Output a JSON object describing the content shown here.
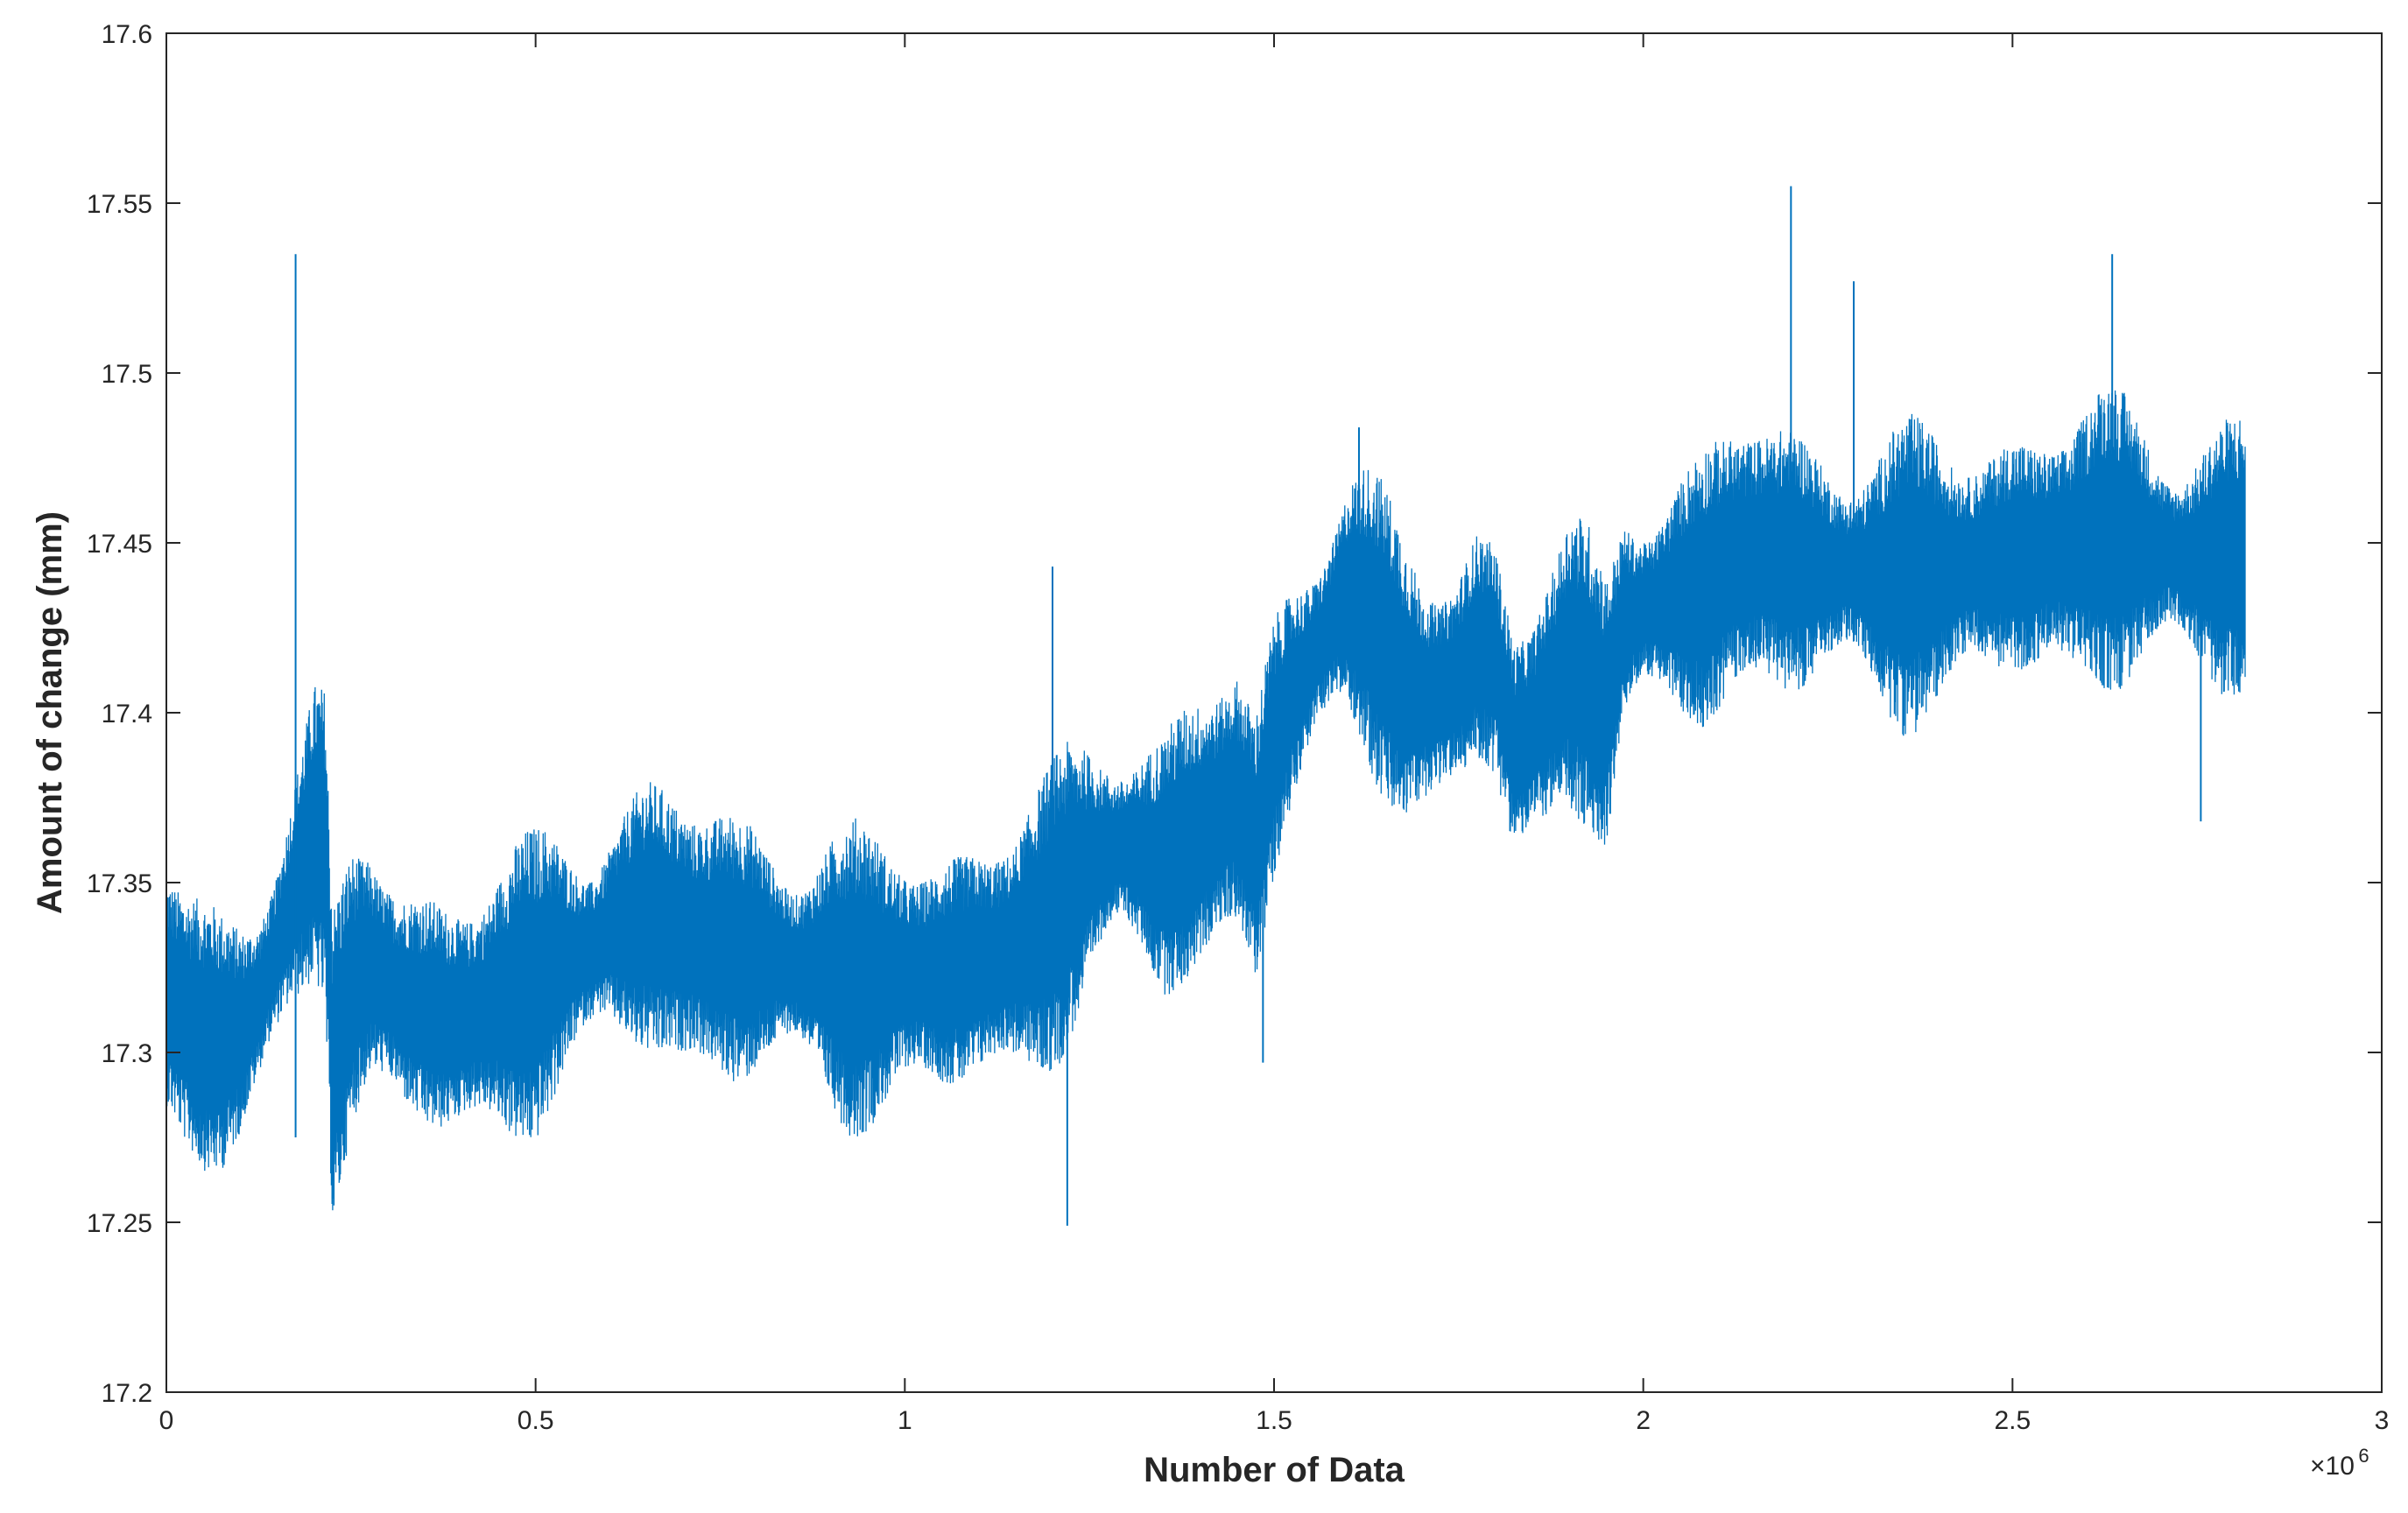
{
  "chart_data": {
    "type": "line",
    "title": "",
    "xlabel": "Number of Data",
    "ylabel": "Amount of change (mm)",
    "xlim": [
      0,
      3000000
    ],
    "ylim": [
      17.2,
      17.6
    ],
    "x_ticks": [
      0,
      500000,
      1000000,
      1500000,
      2000000,
      2500000,
      3000000
    ],
    "x_tick_labels": [
      "0",
      "0.5",
      "1",
      "1.5",
      "2",
      "2.5",
      "3"
    ],
    "y_ticks": [
      17.2,
      17.25,
      17.3,
      17.35,
      17.4,
      17.45,
      17.5,
      17.55,
      17.6
    ],
    "y_tick_labels": [
      "17.2",
      "17.25",
      "17.3",
      "17.35",
      "17.4",
      "17.45",
      "17.5",
      "17.55",
      "17.6"
    ],
    "x_exponent_label": {
      "base": "×10",
      "power": "6"
    },
    "grid": false,
    "box": true,
    "line_color": "#0072BD",
    "series": [
      {
        "x": [
          0,
          25000,
          50000,
          75000,
          100000,
          125000,
          150000,
          175000,
          200000,
          215000,
          225000,
          250000,
          275000,
          300000,
          325000,
          350000,
          375000,
          400000,
          425000,
          450000,
          475000,
          500000,
          525000,
          550000,
          575000,
          600000,
          625000,
          650000,
          675000,
          700000,
          725000,
          750000,
          775000,
          800000,
          825000,
          850000,
          875000,
          900000,
          925000,
          950000,
          975000,
          1000000,
          1025000,
          1050000,
          1075000,
          1100000,
          1125000,
          1150000,
          1175000,
          1200000,
          1225000,
          1250000,
          1275000,
          1300000,
          1325000,
          1350000,
          1375000,
          1400000,
          1425000,
          1450000,
          1475000,
          1500000,
          1525000,
          1550000,
          1575000,
          1600000,
          1625000,
          1650000,
          1675000,
          1700000,
          1725000,
          1750000,
          1775000,
          1800000,
          1825000,
          1850000,
          1875000,
          1900000,
          1925000,
          1950000,
          1975000,
          2000000,
          2025000,
          2050000,
          2075000,
          2100000,
          2125000,
          2150000,
          2175000,
          2200000,
          2225000,
          2250000,
          2275000,
          2300000,
          2325000,
          2350000,
          2375000,
          2400000,
          2425000,
          2450000,
          2475000,
          2500000,
          2525000,
          2550000,
          2575000,
          2600000,
          2625000,
          2650000,
          2675000,
          2700000,
          2725000,
          2750000,
          2775000,
          2800000,
          2815000
        ],
        "y": [
          17.318,
          17.31,
          17.305,
          17.303,
          17.306,
          17.315,
          17.33,
          17.348,
          17.365,
          17.36,
          17.295,
          17.318,
          17.325,
          17.32,
          17.315,
          17.312,
          17.31,
          17.31,
          17.312,
          17.315,
          17.318,
          17.32,
          17.325,
          17.328,
          17.33,
          17.335,
          17.338,
          17.34,
          17.338,
          17.335,
          17.333,
          17.332,
          17.33,
          17.33,
          17.328,
          17.326,
          17.325,
          17.324,
          17.322,
          17.322,
          17.322,
          17.323,
          17.323,
          17.323,
          17.324,
          17.326,
          17.328,
          17.33,
          17.335,
          17.34,
          17.348,
          17.355,
          17.36,
          17.36,
          17.358,
          17.355,
          17.36,
          17.365,
          17.37,
          17.375,
          17.36,
          17.39,
          17.405,
          17.415,
          17.425,
          17.435,
          17.43,
          17.42,
          17.41,
          17.405,
          17.405,
          17.41,
          17.42,
          17.415,
          17.39,
          17.395,
          17.405,
          17.415,
          17.41,
          17.4,
          17.428,
          17.43,
          17.432,
          17.434,
          17.436,
          17.44,
          17.445,
          17.447,
          17.446,
          17.445,
          17.444,
          17.443,
          17.442,
          17.441,
          17.44,
          17.44,
          17.441,
          17.442,
          17.443,
          17.444,
          17.445,
          17.446,
          17.446,
          17.447,
          17.448,
          17.45,
          17.452,
          17.451,
          17.45,
          17.448,
          17.446,
          17.445,
          17.445,
          17.446,
          17.447
        ]
      }
    ],
    "spikes": [
      {
        "x": 175000,
        "y": 17.535
      },
      {
        "x": 175000,
        "y": 17.275
      },
      {
        "x": 225000,
        "y": 17.257
      },
      {
        "x": 1200000,
        "y": 17.443
      },
      {
        "x": 1220000,
        "y": 17.249
      },
      {
        "x": 2200000,
        "y": 17.555
      },
      {
        "x": 2285000,
        "y": 17.527
      },
      {
        "x": 2635000,
        "y": 17.535
      },
      {
        "x": 2755000,
        "y": 17.368
      },
      {
        "x": 1485000,
        "y": 17.297
      },
      {
        "x": 1615000,
        "y": 17.484
      }
    ]
  }
}
